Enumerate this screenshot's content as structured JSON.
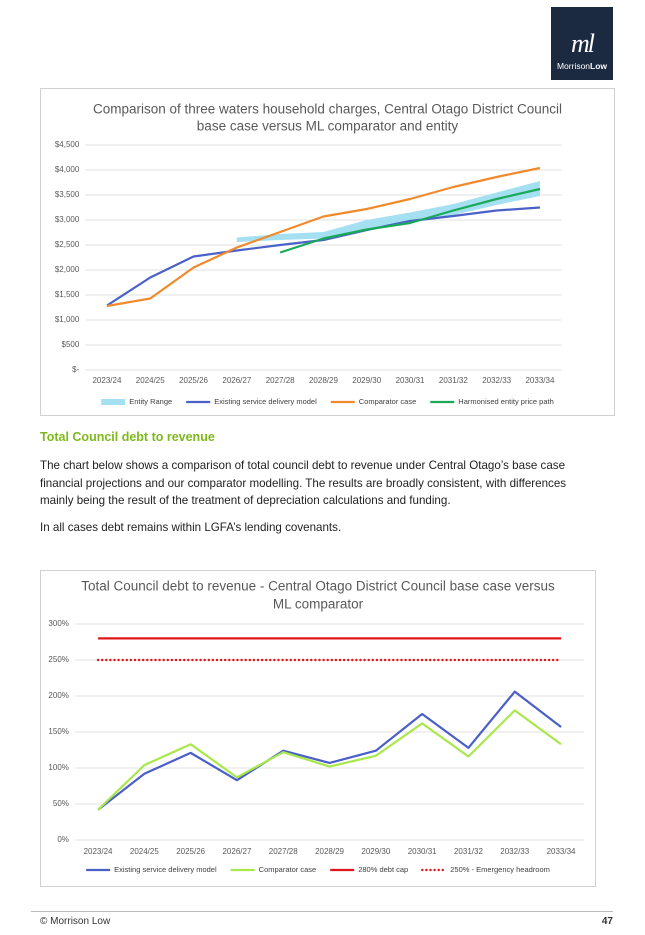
{
  "logo": {
    "monogram": "ml",
    "word_regular": "Morrison",
    "word_bold": "Low"
  },
  "section_heading": "Total Council debt to revenue",
  "paragraphs": [
    "The chart below shows a comparison of total council debt to revenue under Central Otago’s base case financial projections and our comparator modelling.  The results are broadly consistent, with differences mainly being the result of the treatment of depreciation calculations and funding.",
    "In all cases debt remains within LGFA’s lending covenants."
  ],
  "footer": {
    "left": "© Morrison Low",
    "page_number": "47"
  },
  "chart_data": [
    {
      "type": "line",
      "title": [
        "Comparison of three waters household charges, Central Otago District Council",
        "base case versus ML comparator and entity"
      ],
      "categories": [
        "2023/24",
        "2024/25",
        "2025/26",
        "2026/27",
        "2027/28",
        "2028/29",
        "2029/30",
        "2030/31",
        "2031/32",
        "2032/33",
        "2033/34"
      ],
      "ylim": [
        0,
        4500
      ],
      "yticks": [
        {
          "value": 0,
          "label": "$-"
        },
        {
          "value": 500,
          "label": "$500"
        },
        {
          "value": 1000,
          "label": "$1,000"
        },
        {
          "value": 1500,
          "label": "$1,500"
        },
        {
          "value": 2000,
          "label": "$2,000"
        },
        {
          "value": 2500,
          "label": "$2,500"
        },
        {
          "value": 3000,
          "label": "$3,000"
        },
        {
          "value": 3500,
          "label": "$3,500"
        },
        {
          "value": 4000,
          "label": "$4,000"
        },
        {
          "value": 4500,
          "label": "$4,500"
        }
      ],
      "grid": true,
      "legend": "bottom",
      "series": [
        {
          "name": "Entity Range",
          "kind": "range",
          "color": "#a4dff2",
          "low": [
            null,
            null,
            null,
            2560,
            2600,
            2630,
            2800,
            2950,
            3100,
            3300,
            3480
          ],
          "high": [
            null,
            null,
            null,
            2650,
            2720,
            2760,
            3000,
            3150,
            3320,
            3550,
            3780
          ]
        },
        {
          "name": "Existing service delivery model",
          "color": "#4a62c8",
          "values": [
            1290,
            1850,
            2270,
            2390,
            2500,
            2600,
            2800,
            2980,
            3080,
            3190,
            3250
          ]
        },
        {
          "name": "Comparator case",
          "color": "#f08a2c",
          "values": [
            1280,
            1430,
            2050,
            2450,
            2760,
            3070,
            3220,
            3420,
            3660,
            3860,
            4040
          ]
        },
        {
          "name": "Harmonised entity price path",
          "color": "#1aa958",
          "values": [
            null,
            null,
            null,
            null,
            2350,
            2630,
            2810,
            2940,
            3190,
            3420,
            3620
          ]
        }
      ]
    },
    {
      "type": "line",
      "title": [
        "Total Council debt to revenue -  Central Otago District Council base case versus",
        "ML comparator"
      ],
      "categories": [
        "2023/24",
        "2024/25",
        "2025/26",
        "2026/27",
        "2027/28",
        "2028/29",
        "2029/30",
        "2030/31",
        "2031/32",
        "2032/33",
        "2033/34"
      ],
      "ylim": [
        0,
        300
      ],
      "yticks": [
        {
          "value": 0,
          "label": "0%"
        },
        {
          "value": 50,
          "label": "50%"
        },
        {
          "value": 100,
          "label": "100%"
        },
        {
          "value": 150,
          "label": "150%"
        },
        {
          "value": 200,
          "label": "200%"
        },
        {
          "value": 250,
          "label": "250%"
        },
        {
          "value": 300,
          "label": "300%"
        }
      ],
      "grid": true,
      "legend": "bottom",
      "series": [
        {
          "name": "Existing service delivery model",
          "color": "#4a5fc8",
          "values": [
            42,
            92,
            121,
            83,
            124,
            107,
            124,
            175,
            128,
            206,
            157
          ]
        },
        {
          "name": "Comparator case",
          "color": "#a8e84a",
          "values": [
            42,
            104,
            133,
            87,
            122,
            102,
            117,
            162,
            116,
            180,
            133
          ]
        },
        {
          "name": "280% debt cap",
          "color": "#e0161a",
          "values": [
            280,
            280,
            280,
            280,
            280,
            280,
            280,
            280,
            280,
            280,
            280
          ]
        },
        {
          "name": "250% - Emergency headroom",
          "color": "#e0161a",
          "line_style": "dotted",
          "values": [
            250,
            250,
            250,
            250,
            250,
            250,
            250,
            250,
            250,
            250,
            250
          ]
        }
      ]
    }
  ]
}
